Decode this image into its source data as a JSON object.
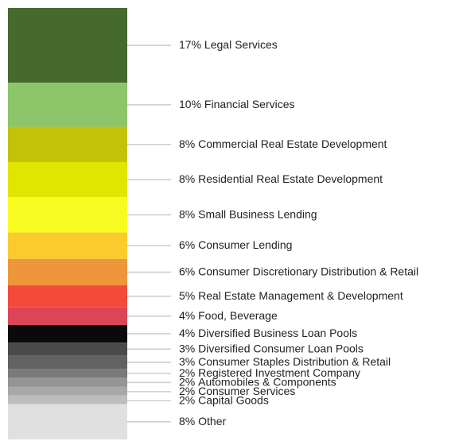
{
  "chart_data": {
    "type": "stacked_bar",
    "series": [
      {
        "name": "Legal Services",
        "values": [
          17
        ],
        "value_labels": [
          "17%"
        ],
        "color": "#466a2e"
      },
      {
        "name": "Financial Services",
        "values": [
          10
        ],
        "value_labels": [
          "10%"
        ],
        "color": "#8cc56a"
      },
      {
        "name": "Commercial Real Estate Development",
        "values": [
          8
        ],
        "value_labels": [
          "8%"
        ],
        "color": "#c3c20a"
      },
      {
        "name": "Residential Real Estate Development",
        "values": [
          8
        ],
        "value_labels": [
          "8%"
        ],
        "color": "#e0e600"
      },
      {
        "name": "Small Business Lending",
        "values": [
          8
        ],
        "value_labels": [
          "8%"
        ],
        "color": "#f8fb22"
      },
      {
        "name": "Consumer Lending",
        "values": [
          6
        ],
        "value_labels": [
          "6%"
        ],
        "color": "#fbcb2d"
      },
      {
        "name": "Consumer Discretionary Distribution & Retail",
        "values": [
          6
        ],
        "value_labels": [
          "6%"
        ],
        "color": "#ee963c"
      },
      {
        "name": "Real Estate Management & Development",
        "values": [
          5
        ],
        "value_labels": [
          "5%"
        ],
        "color": "#f24b3c"
      },
      {
        "name": "Food, Beverage",
        "values": [
          4
        ],
        "value_labels": [
          "4%"
        ],
        "color": "#dc4558"
      },
      {
        "name": "Diversified Business Loan Pools",
        "values": [
          4
        ],
        "value_labels": [
          "4%"
        ],
        "color": "#0a0a0a"
      },
      {
        "name": "Diversified Consumer Loan Pools",
        "values": [
          3
        ],
        "value_labels": [
          "3%"
        ],
        "color": "#4a4a4a"
      },
      {
        "name": "Consumer Staples Distribution & Retail",
        "values": [
          3
        ],
        "value_labels": [
          "3%"
        ],
        "color": "#626262"
      },
      {
        "name": "Registered Investment Company",
        "values": [
          2
        ],
        "value_labels": [
          "2%"
        ],
        "color": "#7a7a7a"
      },
      {
        "name": "Automobiles & Components",
        "values": [
          2
        ],
        "value_labels": [
          "2%"
        ],
        "color": "#959595"
      },
      {
        "name": "Consumer Services",
        "values": [
          2
        ],
        "value_labels": [
          "2%"
        ],
        "color": "#a8a8a8"
      },
      {
        "name": "Capital Goods",
        "values": [
          2
        ],
        "value_labels": [
          "2%"
        ],
        "color": "#bdbdbd"
      },
      {
        "name": "Other",
        "values": [
          8
        ],
        "value_labels": [
          "8%"
        ],
        "color": "#e0e0e0"
      }
    ]
  }
}
